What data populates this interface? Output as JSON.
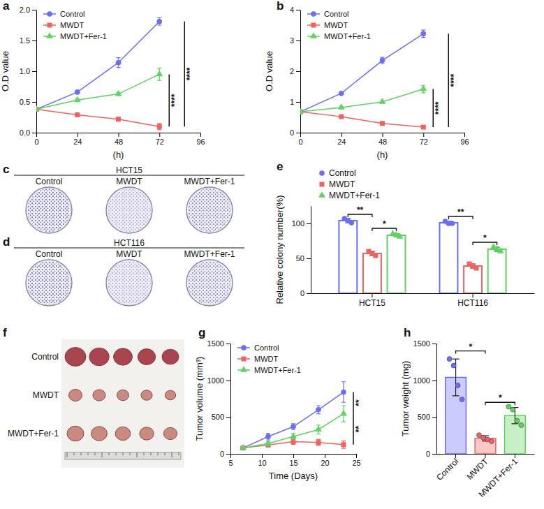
{
  "chart_data": [
    {
      "type": "line",
      "panel_label": "a",
      "x_label": "(h)",
      "y_label": "O.D value",
      "x": [
        0,
        24,
        48,
        72
      ],
      "xlim": [
        0,
        96
      ],
      "xticks": [
        0,
        24,
        48,
        72,
        96
      ],
      "ylim": [
        0,
        2
      ],
      "yticks": [
        {
          "value": 0,
          "label": "0.0"
        },
        0.5,
        {
          "value": 1,
          "label": "1.0"
        },
        1.5,
        {
          "value": 2,
          "label": "2.0"
        }
      ],
      "legend": "top-left",
      "series": [
        {
          "name": "Control",
          "color": "#6b6df3",
          "marker": "circle",
          "values": [
            0.38,
            0.66,
            1.14,
            1.81
          ],
          "errors": [
            0.01,
            0.02,
            0.08,
            0.06
          ]
        },
        {
          "name": "MWDT",
          "color": "#f0625f",
          "marker": "square",
          "values": [
            0.38,
            0.29,
            0.22,
            0.1
          ],
          "errors": [
            0.01,
            0.01,
            0.01,
            0.05
          ]
        },
        {
          "name": "MWDT+Fer-1",
          "color": "#5fd35f",
          "marker": "triangle",
          "values": [
            0.38,
            0.53,
            0.63,
            0.95
          ],
          "errors": [
            0.01,
            0.02,
            0.02,
            0.1
          ]
        }
      ],
      "annotations": [
        {
          "text": "****",
          "y": [
            0.1,
            1.81
          ]
        },
        {
          "text": "****",
          "y": [
            0.1,
            0.95
          ]
        }
      ]
    },
    {
      "type": "line",
      "panel_label": "b",
      "x_label": "(h)",
      "y_label": "O.D value",
      "x": [
        0,
        24,
        48,
        72
      ],
      "xlim": [
        0,
        96
      ],
      "xticks": [
        0,
        24,
        48,
        72,
        96
      ],
      "ylim": [
        0,
        4
      ],
      "yticks": [
        0,
        1,
        2,
        3,
        4
      ],
      "legend": "top-left",
      "series": [
        {
          "name": "Control",
          "color": "#6b6df3",
          "marker": "circle",
          "values": [
            0.68,
            1.28,
            2.35,
            3.22
          ],
          "errors": [
            0.02,
            0.03,
            0.1,
            0.12
          ]
        },
        {
          "name": "MWDT",
          "color": "#f0625f",
          "marker": "square",
          "values": [
            0.68,
            0.52,
            0.3,
            0.18
          ],
          "errors": [
            0.01,
            0.02,
            0.02,
            0.02
          ]
        },
        {
          "name": "MWDT+Fer-1",
          "color": "#5fd35f",
          "marker": "triangle",
          "values": [
            0.68,
            0.82,
            1.0,
            1.42
          ],
          "errors": [
            0.02,
            0.02,
            0.03,
            0.12
          ]
        }
      ],
      "annotations": [
        {
          "text": "****",
          "y": [
            0.18,
            3.22
          ]
        },
        {
          "text": "****",
          "y": [
            0.18,
            1.42
          ]
        }
      ]
    },
    {
      "type": "image",
      "panel_label": "c",
      "title": "HCT15",
      "categories": [
        "Control",
        "MWDT",
        "MWDT+Fer-1"
      ]
    },
    {
      "type": "image",
      "panel_label": "d",
      "title": "HCT116",
      "categories": [
        "Control",
        "MWDT",
        "MWDT+Fer-1"
      ]
    },
    {
      "type": "bar",
      "panel_label": "e",
      "y_label": "Relative colony number(%)",
      "categories": [
        "HCT15",
        "HCT116"
      ],
      "ylim": [
        0,
        125
      ],
      "yticks": [
        0,
        50,
        100
      ],
      "legend": "top-left",
      "series": [
        {
          "name": "Control",
          "color": "#6b6df3",
          "marker": "circle",
          "values": [
            104,
            101
          ],
          "errors": [
            3,
            2
          ],
          "points": [
            [
              107,
              104,
              101
            ],
            [
              103,
              100,
              100
            ]
          ]
        },
        {
          "name": "MWDT",
          "color": "#f0625f",
          "marker": "square",
          "values": [
            57,
            39
          ],
          "errors": [
            3,
            3
          ],
          "points": [
            [
              60,
              57,
              54
            ],
            [
              42,
              39,
              36
            ]
          ]
        },
        {
          "name": "MWDT+Fer-1",
          "color": "#5fd35f",
          "marker": "triangle",
          "values": [
            83,
            63
          ],
          "errors": [
            2,
            3
          ],
          "points": [
            [
              85,
              83,
              81
            ],
            [
              66,
              63,
              60
            ]
          ]
        }
      ],
      "annotations": [
        {
          "text": "**",
          "category": "HCT15",
          "between": [
            "Control",
            "MWDT"
          ],
          "y": 113
        },
        {
          "text": "*",
          "category": "HCT15",
          "between": [
            "MWDT",
            "MWDT+Fer-1"
          ],
          "y": 93
        },
        {
          "text": "**",
          "category": "HCT116",
          "between": [
            "Control",
            "MWDT"
          ],
          "y": 110
        },
        {
          "text": "*",
          "category": "HCT116",
          "between": [
            "MWDT",
            "MWDT+Fer-1"
          ],
          "y": 73
        }
      ]
    },
    {
      "type": "image",
      "panel_label": "f",
      "categories": [
        "Control",
        "MWDT",
        "MWDT+Fer-1"
      ]
    },
    {
      "type": "line",
      "panel_label": "g",
      "x_label": "Time (Days)",
      "y_label": "Tumor volume (mm³)",
      "x": [
        7,
        11,
        15,
        19,
        23
      ],
      "xlim": [
        5,
        25
      ],
      "xticks": [
        5,
        10,
        15,
        20,
        25
      ],
      "ylim": [
        0,
        1500
      ],
      "yticks": [
        0,
        500,
        1000,
        1500
      ],
      "legend": "top-left",
      "series": [
        {
          "name": "Control",
          "color": "#6b6df3",
          "marker": "circle",
          "values": [
            80,
            235,
            370,
            600,
            840
          ],
          "errors": [
            10,
            45,
            40,
            55,
            140
          ]
        },
        {
          "name": "MWDT",
          "color": "#f0625f",
          "marker": "square",
          "values": [
            80,
            120,
            165,
            155,
            125
          ],
          "errors": [
            10,
            15,
            35,
            40,
            50
          ]
        },
        {
          "name": "MWDT+Fer-1",
          "color": "#5fd35f",
          "marker": "triangle",
          "values": [
            80,
            140,
            235,
            330,
            545
          ],
          "errors": [
            10,
            25,
            45,
            60,
            110
          ]
        }
      ],
      "annotations": [
        {
          "text": "**",
          "y": [
            545,
            840
          ]
        },
        {
          "text": "**",
          "y": [
            125,
            545
          ]
        }
      ]
    },
    {
      "type": "bar",
      "panel_label": "h",
      "y_label": "Tumor weight (mg)",
      "categories": [
        "Control",
        "MWDT",
        "MWDT+Fer-1"
      ],
      "values": [
        1040,
        210,
        520
      ],
      "errors": [
        250,
        35,
        110
      ],
      "points": [
        [
          1290,
          1200,
          930,
          740
        ],
        [
          255,
          220,
          195,
          170
        ],
        [
          640,
          600,
          450,
          390
        ]
      ],
      "colors": [
        "#6b6df3",
        "#f0625f",
        "#5fd35f"
      ],
      "ylim": [
        0,
        1500
      ],
      "yticks": [
        0,
        500,
        1000,
        1500
      ],
      "annotations": [
        {
          "text": "*",
          "between": [
            "Control",
            "MWDT"
          ],
          "y": 1400
        },
        {
          "text": "*",
          "between": [
            "MWDT",
            "MWDT+Fer-1"
          ],
          "y": 700
        }
      ]
    }
  ]
}
